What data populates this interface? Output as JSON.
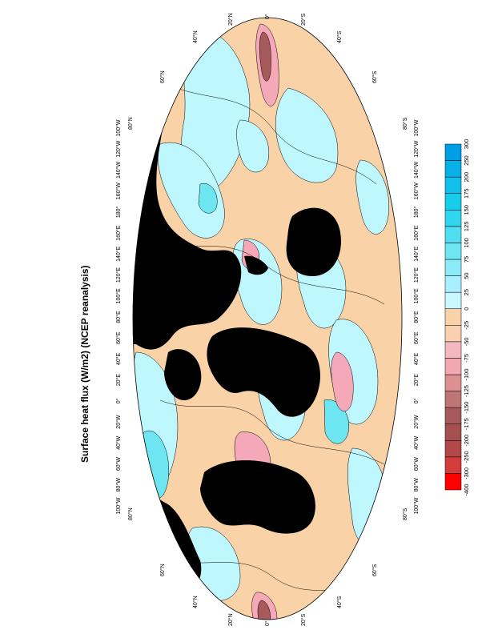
{
  "title": "Surface heat flux (W/m2) (NCEP reanalysis)",
  "map": {
    "projection": "ellipse (rotated 90°)",
    "lat_labels_top": [
      "40°N",
      "20°N",
      "0°",
      "20°S",
      "40°S"
    ],
    "lat_labels_bottom": [
      "40°N",
      "20°N",
      "0°",
      "20°S",
      "40°S"
    ],
    "lat_labels_left_side": [
      "60°N",
      "80°N"
    ],
    "lat_labels_right_side": [
      "60°S",
      "80°S"
    ],
    "lat_labels_upper_inner": [
      "60°N",
      "60°S"
    ],
    "lon_labels": [
      "100°W",
      "80°W",
      "60°W",
      "40°W",
      "20°W",
      "0°",
      "20°E",
      "40°E",
      "60°E",
      "80°E",
      "100°E",
      "120°E",
      "140°E",
      "160°E",
      "180°",
      "160°W",
      "140°W",
      "120°W",
      "100°W"
    ],
    "colors": {
      "land": "#000000",
      "ocean_pos_light": "#bff7ff",
      "ocean_pos_mid": "#6ee6f2",
      "ocean_neg_light": "#f9d3a7",
      "ocean_neg_mid": "#f5a9b8",
      "ocean_neg_dark": "#a65a5a"
    }
  },
  "colorbar": {
    "labels": [
      "-400",
      "-300",
      "-250",
      "-200",
      "-175",
      "-150",
      "-125",
      "-100",
      "-75",
      "-50",
      "-25",
      "0",
      "25",
      "50",
      "75",
      "100",
      "125",
      "150",
      "175",
      "200",
      "250",
      "300"
    ],
    "colors": [
      "#ff0000",
      "#d43c3c",
      "#b34848",
      "#a45050",
      "#a65a5a",
      "#c07575",
      "#dd9090",
      "#f2a8b0",
      "#f5b8c0",
      "#fbd0b0",
      "#f9d3a7",
      "#c8f7ff",
      "#a8f0ff",
      "#8aeaf8",
      "#6ee6f2",
      "#50dff0",
      "#30d6ee",
      "#18ccec",
      "#10bfea",
      "#08b0e8",
      "#009fe5"
    ]
  }
}
